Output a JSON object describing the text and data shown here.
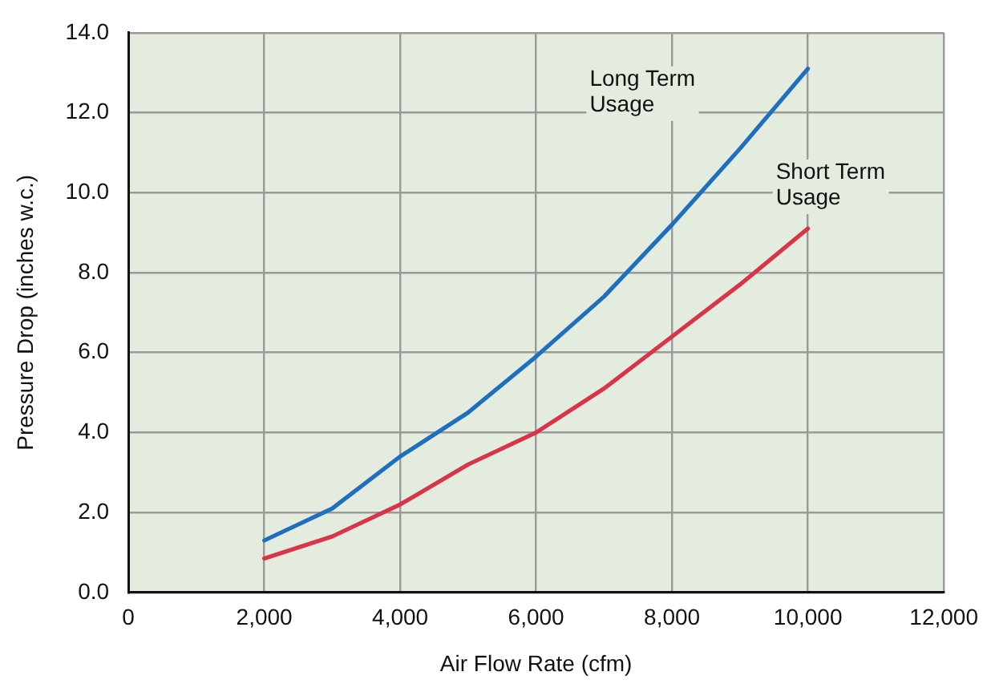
{
  "chart_data": {
    "type": "line",
    "xlabel": "Air Flow Rate (cfm)",
    "ylabel": "Pressure Drop (inches w.c.)",
    "xlim": [
      0,
      12000
    ],
    "ylim": [
      0,
      14
    ],
    "xticks": [
      0,
      {
        "value": 2000,
        "label": "2,000"
      },
      {
        "value": 4000,
        "label": "4,000"
      },
      {
        "value": 6000,
        "label": "6,000"
      },
      {
        "value": 8000,
        "label": "8,000"
      },
      {
        "value": 10000,
        "label": "10,000"
      },
      {
        "value": 12000,
        "label": "12,000"
      }
    ],
    "yticks": [
      {
        "value": 0,
        "label": "0.0"
      },
      {
        "value": 2,
        "label": "2.0"
      },
      {
        "value": 4,
        "label": "4.0"
      },
      {
        "value": 6,
        "label": "6.0"
      },
      {
        "value": 8,
        "label": "8.0"
      },
      {
        "value": 10,
        "label": "10.0"
      },
      {
        "value": 12,
        "label": "12.0"
      },
      {
        "value": 14,
        "label": "14.0"
      }
    ],
    "x": [
      2000,
      3000,
      4000,
      5000,
      6000,
      7000,
      8000,
      9000,
      10000
    ],
    "series": [
      {
        "color": "#1f6fbf",
        "values": [
          1.3,
          2.1,
          3.4,
          4.5,
          5.9,
          7.4,
          9.2,
          11.1,
          13.1
        ]
      },
      {
        "color": "#d8344a",
        "values": [
          0.85,
          1.4,
          2.2,
          3.2,
          4.0,
          5.1,
          6.4,
          7.7,
          9.1
        ]
      }
    ],
    "annotations": [
      "Long Term\nUsage",
      "Short Term\nUsage"
    ],
    "grid": true,
    "legend": false,
    "marker": "none",
    "line_style": "solid"
  }
}
